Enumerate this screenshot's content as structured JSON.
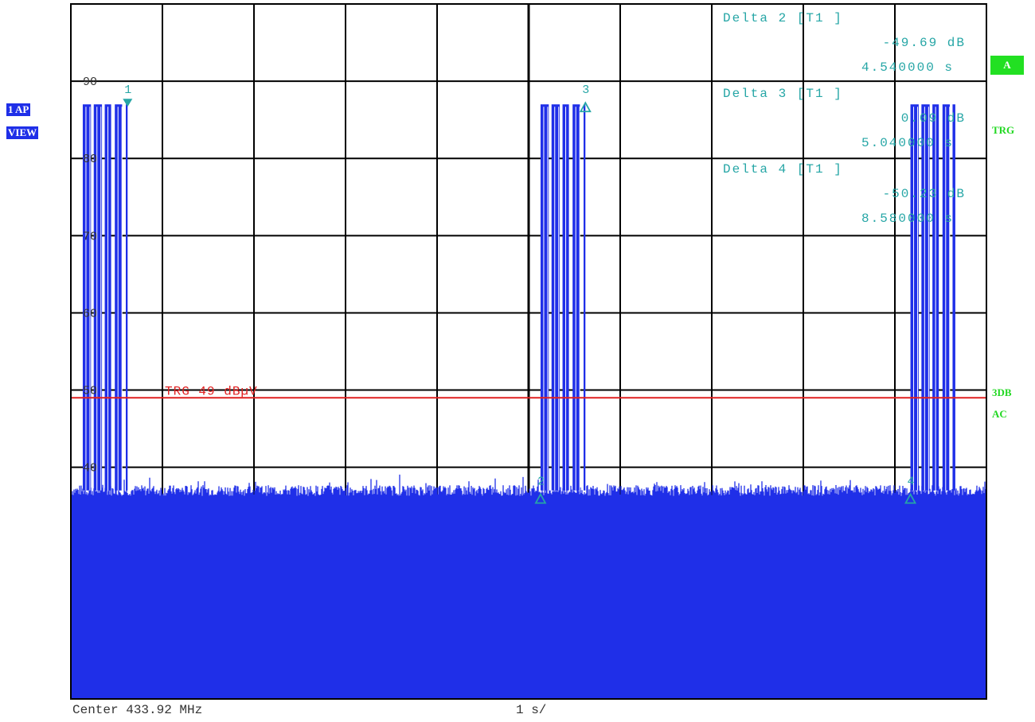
{
  "instrument": {
    "left_labels": [
      "1 AP",
      "VIEW"
    ],
    "right_labels": {
      "a_box": "A",
      "trg": "TRG",
      "three_db": "3DB",
      "ac": "AC"
    }
  },
  "footer": {
    "center": "Center 433.92 MHz",
    "sweep": "1 s/"
  },
  "chart_data": {
    "type": "line",
    "title": "",
    "xlabel": "",
    "ylabel": "",
    "xlim": [
      0,
      10
    ],
    "ylim": [
      10,
      100
    ],
    "x_unit": "s",
    "y_unit": "dBµV",
    "grid": true,
    "y_tick_labels": [
      {
        "value": 90,
        "text": "90"
      },
      {
        "value": 80,
        "text": "80"
      },
      {
        "value": 70,
        "text": "70"
      },
      {
        "value": 60,
        "text": "60"
      },
      {
        "value": 50,
        "text": "50"
      },
      {
        "value": 40,
        "text": "40"
      }
    ],
    "trigger_line": {
      "value": 49,
      "label": "TRG 49 dBµV",
      "color": "#e02020"
    },
    "noise_floor": {
      "level_dbuv": 37,
      "min_dbuv": 10,
      "spike_max_dbuv": 39
    },
    "bursts": [
      {
        "start_s": 0.13,
        "end_s": 0.62,
        "peak_dbuv": 87,
        "pulses": [
          [
            0.13,
            0.22
          ],
          [
            0.25,
            0.34
          ],
          [
            0.37,
            0.44
          ],
          [
            0.48,
            0.56
          ],
          [
            0.6,
            0.62
          ]
        ]
      },
      {
        "start_s": 5.13,
        "end_s": 5.62,
        "peak_dbuv": 87,
        "pulses": [
          [
            5.13,
            5.22
          ],
          [
            5.25,
            5.34
          ],
          [
            5.37,
            5.44
          ],
          [
            5.48,
            5.56
          ],
          [
            5.6,
            5.62
          ]
        ]
      },
      {
        "start_s": 9.17,
        "end_s": 9.66,
        "peak_dbuv": 87,
        "pulses": [
          [
            9.17,
            9.26
          ],
          [
            9.29,
            9.38
          ],
          [
            9.41,
            9.48
          ],
          [
            9.52,
            9.6
          ],
          [
            9.63,
            9.66
          ]
        ]
      }
    ],
    "markers": [
      {
        "id": "1",
        "x_s": 0.62,
        "y_dbuv": 87,
        "shape": "filled-down"
      },
      {
        "id": "2",
        "x_s": 5.13,
        "y_dbuv": 36.3,
        "shape": "delta"
      },
      {
        "id": "3",
        "x_s": 5.62,
        "y_dbuv": 87,
        "shape": "delta"
      },
      {
        "id": "4",
        "x_s": 9.17,
        "y_dbuv": 36.3,
        "shape": "delta"
      }
    ],
    "marker_table": [
      {
        "label": "Delta 2 [T1 ]",
        "level": "-49.69 dB",
        "time": "4.540000 s"
      },
      {
        "label": "Delta 3 [T1 ]",
        "level": "0.09 dB",
        "time": "5.040000 s"
      },
      {
        "label": "Delta 4 [T1 ]",
        "level": "-50.23 dB",
        "time": "8.580000 s"
      }
    ],
    "colors": {
      "trace": "#1f2fe8",
      "marker": "#26a6a6",
      "grid": "#000000"
    }
  }
}
